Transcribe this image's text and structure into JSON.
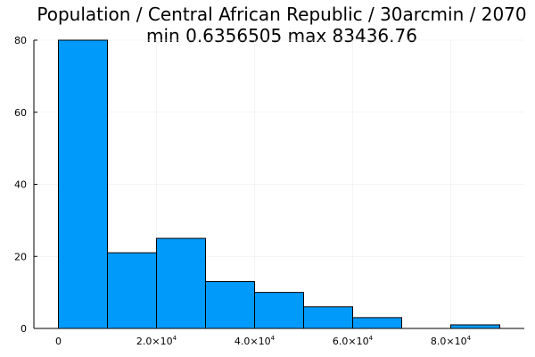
{
  "chart_data": {
    "type": "bar",
    "title": "Population / Central African Republic / 30arcmin / 2070",
    "subtitle": "min 0.6356505  max 83436.76",
    "xlabel": "",
    "ylabel": "",
    "bins": [
      {
        "x0": 0,
        "x1": 10000,
        "count": 80
      },
      {
        "x0": 10000,
        "x1": 20000,
        "count": 21
      },
      {
        "x0": 20000,
        "x1": 30000,
        "count": 25
      },
      {
        "x0": 30000,
        "x1": 40000,
        "count": 13
      },
      {
        "x0": 40000,
        "x1": 50000,
        "count": 10
      },
      {
        "x0": 50000,
        "x1": 60000,
        "count": 6
      },
      {
        "x0": 60000,
        "x1": 70000,
        "count": 3
      },
      {
        "x0": 70000,
        "x1": 80000,
        "count": 0
      },
      {
        "x0": 80000,
        "x1": 90000,
        "count": 1
      }
    ],
    "xlim": [
      -5000,
      95000
    ],
    "ylim": [
      0,
      80
    ],
    "xticks": [
      {
        "value": 0,
        "mantissa": "0",
        "exponent": ""
      },
      {
        "value": 20000,
        "mantissa": "2.0×10",
        "exponent": "4"
      },
      {
        "value": 40000,
        "mantissa": "4.0×10",
        "exponent": "4"
      },
      {
        "value": 60000,
        "mantissa": "6.0×10",
        "exponent": "4"
      },
      {
        "value": 80000,
        "mantissa": "8.0×10",
        "exponent": "4"
      }
    ],
    "yticks": [
      {
        "value": 0,
        "label": "0"
      },
      {
        "value": 20,
        "label": "20"
      },
      {
        "value": 40,
        "label": "40"
      },
      {
        "value": 60,
        "label": "60"
      },
      {
        "value": 80,
        "label": "80"
      }
    ],
    "grid": true,
    "legend": "none",
    "colors": {
      "bar_fill": "#009AFA",
      "bar_stroke": "#000000",
      "grid": "#E9E9E9",
      "axis": "#000000"
    }
  }
}
